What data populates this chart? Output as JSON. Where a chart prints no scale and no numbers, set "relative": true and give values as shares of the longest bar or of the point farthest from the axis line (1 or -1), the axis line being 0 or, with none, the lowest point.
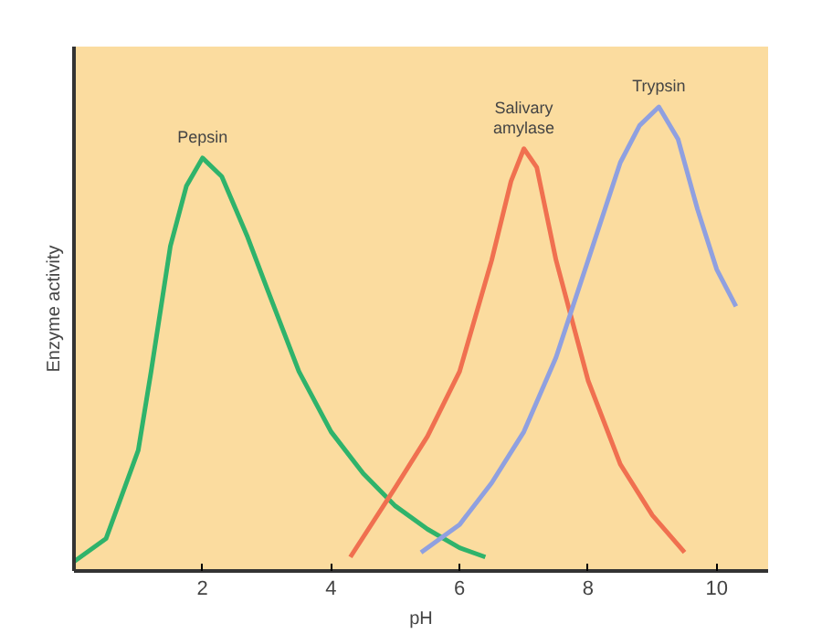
{
  "chart_data": {
    "type": "line",
    "relative": true,
    "xlabel": "pH",
    "ylabel": "Enzyme activity",
    "xlim": [
      0,
      10.8
    ],
    "xticks": [
      2,
      4,
      6,
      8,
      10
    ],
    "grid": false,
    "marker": "none",
    "line_style": "solid",
    "series": [
      {
        "name": "Pepsin",
        "color": "#2fb36b",
        "x": [
          0,
          0.5,
          1.0,
          1.2,
          1.5,
          1.75,
          2.0,
          2.3,
          2.7,
          3.0,
          3.5,
          4.0,
          4.5,
          5.0,
          5.5,
          6.0,
          6.4
        ],
        "values": [
          0.02,
          0.07,
          0.26,
          0.43,
          0.7,
          0.83,
          0.89,
          0.85,
          0.72,
          0.61,
          0.43,
          0.3,
          0.21,
          0.14,
          0.09,
          0.05,
          0.03
        ]
      },
      {
        "name": "Salivary amylase",
        "color": "#f07050",
        "x": [
          4.3,
          5.0,
          5.5,
          6.0,
          6.5,
          6.8,
          7.0,
          7.2,
          7.5,
          8.0,
          8.5,
          9.0,
          9.5
        ],
        "values": [
          0.03,
          0.18,
          0.29,
          0.43,
          0.67,
          0.84,
          0.91,
          0.87,
          0.67,
          0.41,
          0.23,
          0.12,
          0.04
        ]
      },
      {
        "name": "Trypsin",
        "color": "#8fa0e0",
        "x": [
          5.4,
          6.0,
          6.5,
          7.0,
          7.5,
          8.0,
          8.5,
          8.8,
          9.1,
          9.4,
          9.7,
          10.0,
          10.3
        ],
        "values": [
          0.04,
          0.1,
          0.19,
          0.3,
          0.46,
          0.67,
          0.88,
          0.96,
          1.0,
          0.93,
          0.78,
          0.65,
          0.57
        ]
      }
    ]
  }
}
